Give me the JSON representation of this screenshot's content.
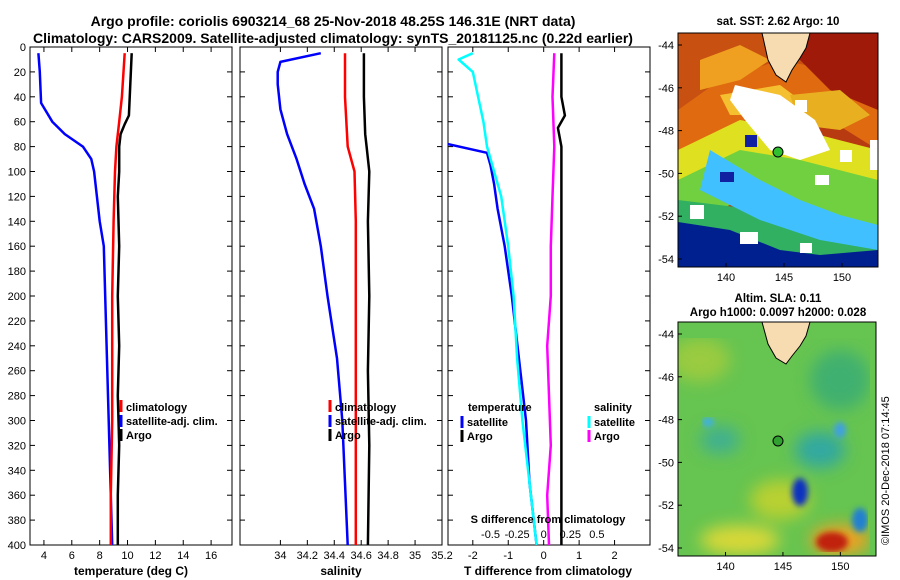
{
  "title": {
    "line1": "Argo profile: coriolis 6903214_68 25-Nov-2018 48.25S 146.31E (NRT data)",
    "line2": "Climatology: CARS2009. Satellite-adjusted climatology: synTS_20181125.nc (0.22d earlier)"
  },
  "colors": {
    "climatology": "#ff0000",
    "satellite": "#0000ff",
    "argo": "#000000",
    "s_satellite": "#00ffff",
    "s_argo": "#ff00ff"
  },
  "chart_data": [
    {
      "type": "line",
      "id": "temperature",
      "xlabel": "temperature (deg C)",
      "ylabel": "",
      "xlim": [
        3,
        17.5
      ],
      "ylim": [
        400,
        0
      ],
      "x_ticks": [
        4,
        6,
        8,
        10,
        12,
        14,
        16
      ],
      "y_ticks": [
        0,
        20,
        40,
        60,
        80,
        100,
        120,
        140,
        160,
        180,
        200,
        220,
        240,
        260,
        280,
        300,
        320,
        340,
        360,
        380,
        400
      ],
      "legend": [
        "climatology",
        "satellite-adj. clim.",
        "Argo"
      ],
      "series": [
        {
          "name": "satellite-adj. clim.",
          "color": "#0000ff",
          "depth": [
            5,
            20,
            45,
            60,
            70,
            80,
            90,
            100,
            120,
            140,
            160,
            200,
            240,
            280,
            320,
            360,
            400
          ],
          "values": [
            3.6,
            3.7,
            3.8,
            4.6,
            5.5,
            6.8,
            7.4,
            7.6,
            7.8,
            8.0,
            8.3,
            8.4,
            8.5,
            8.6,
            8.7,
            8.8,
            8.9
          ]
        },
        {
          "name": "climatology",
          "color": "#ff0000",
          "depth": [
            5,
            40,
            60,
            80,
            100,
            140,
            200,
            260,
            300,
            360,
            400
          ],
          "values": [
            9.8,
            9.6,
            9.4,
            9.2,
            9.1,
            9.0,
            8.9,
            8.9,
            8.9,
            8.8,
            8.8
          ]
        },
        {
          "name": "Argo",
          "color": "#000000",
          "depth": [
            5,
            30,
            55,
            62,
            70,
            80,
            100,
            120,
            160,
            200,
            240,
            280,
            320,
            360,
            400
          ],
          "values": [
            10.3,
            10.2,
            10.1,
            9.8,
            9.5,
            9.4,
            9.4,
            9.3,
            9.4,
            9.3,
            9.4,
            9.3,
            9.4,
            9.3,
            9.3
          ]
        }
      ]
    },
    {
      "type": "line",
      "id": "salinity",
      "xlabel": "salinity",
      "ylabel": "",
      "xlim": [
        33.7,
        35.2
      ],
      "ylim": [
        400,
        0
      ],
      "x_ticks": [
        34,
        34.2,
        34.4,
        34.6,
        34.8,
        35,
        35.2
      ],
      "legend": [
        "climatology",
        "satellite-adj. clim.",
        "Argo"
      ],
      "series": [
        {
          "name": "satellite-adj. clim.",
          "color": "#0000ff",
          "depth": [
            5,
            12,
            20,
            30,
            50,
            70,
            90,
            110,
            130,
            160,
            200,
            250,
            300,
            350,
            400
          ],
          "values": [
            34.3,
            34.0,
            33.98,
            33.98,
            34.0,
            34.05,
            34.12,
            34.18,
            34.25,
            34.3,
            34.35,
            34.42,
            34.46,
            34.48,
            34.5
          ]
        },
        {
          "name": "climatology",
          "color": "#ff0000",
          "depth": [
            5,
            40,
            80,
            100,
            140,
            200,
            260,
            320,
            400
          ],
          "values": [
            34.48,
            34.48,
            34.5,
            34.55,
            34.56,
            34.56,
            34.56,
            34.56,
            34.56
          ]
        },
        {
          "name": "Argo",
          "color": "#000000",
          "depth": [
            5,
            40,
            70,
            80,
            100,
            140,
            200,
            260,
            320,
            400
          ],
          "values": [
            34.62,
            34.62,
            34.63,
            34.64,
            34.66,
            34.65,
            34.66,
            34.65,
            34.66,
            34.65
          ]
        }
      ]
    },
    {
      "type": "line",
      "id": "differences",
      "xlabel": "T difference from climatology",
      "xlim": [
        -2.7,
        3
      ],
      "ylim": [
        400,
        0
      ],
      "x_ticks": [
        -2,
        -1,
        0,
        1,
        2
      ],
      "secondary_title": "S difference from climatology",
      "secondary_ticks": [
        "-0.5",
        "-0.25",
        "0",
        "0.25",
        "0.5"
      ],
      "legend_temperature": {
        "title": "temperature",
        "items": [
          "satellite",
          "Argo"
        ]
      },
      "legend_salinity": {
        "title": "salinity",
        "items": [
          "satellite",
          "Argo"
        ]
      },
      "series": [
        {
          "name": "T satellite",
          "color": "#0000ff",
          "depth": [
            78,
            85,
            95,
            110,
            130,
            160,
            200,
            250,
            300,
            350,
            400
          ],
          "values": [
            -2.7,
            -1.6,
            -1.5,
            -1.4,
            -1.3,
            -1.1,
            -0.9,
            -0.7,
            -0.5,
            -0.4,
            -0.2
          ]
        },
        {
          "name": "T Argo",
          "color": "#000000",
          "depth": [
            5,
            40,
            55,
            65,
            80,
            120,
            160,
            200,
            240,
            280,
            320,
            360,
            400
          ],
          "values": [
            0.5,
            0.5,
            0.6,
            0.4,
            0.5,
            0.5,
            0.5,
            0.5,
            0.5,
            0.5,
            0.5,
            0.5,
            0.5
          ]
        },
        {
          "name": "S satellite",
          "color": "#00ffff",
          "depth": [
            5,
            10,
            20,
            60,
            80,
            100,
            120,
            160,
            200,
            250,
            300,
            350,
            400
          ],
          "values": [
            -2.0,
            -2.4,
            -2.0,
            -1.7,
            -1.6,
            -1.4,
            -1.2,
            -1.0,
            -0.85,
            -0.75,
            -0.6,
            -0.4,
            -0.2
          ]
        },
        {
          "name": "S Argo",
          "color": "#ff00ff",
          "depth": [
            5,
            40,
            80,
            120,
            160,
            200,
            240,
            280,
            320,
            360,
            400
          ],
          "values": [
            0.3,
            0.25,
            0.3,
            0.25,
            0.2,
            0.2,
            0.1,
            0.15,
            0.2,
            0.1,
            0.15
          ]
        }
      ]
    }
  ],
  "sst_map": {
    "title": "sat. SST: 2.62 Argo: 10",
    "x_ticks": [
      "140",
      "145",
      "150"
    ],
    "y_ticks": [
      "-44",
      "-46",
      "-48",
      "-50",
      "-52",
      "-54"
    ]
  },
  "sla_map": {
    "title_line1": "Altim. SLA: 0.11",
    "title_line2": "Argo h1000: 0.0097 h2000: 0.028",
    "x_ticks": [
      "140",
      "145",
      "150"
    ],
    "y_ticks": [
      "-44",
      "-46",
      "-48",
      "-50",
      "-52",
      "-54"
    ]
  },
  "stamp": "©IMOS 20-Dec-2018 07:14:45"
}
